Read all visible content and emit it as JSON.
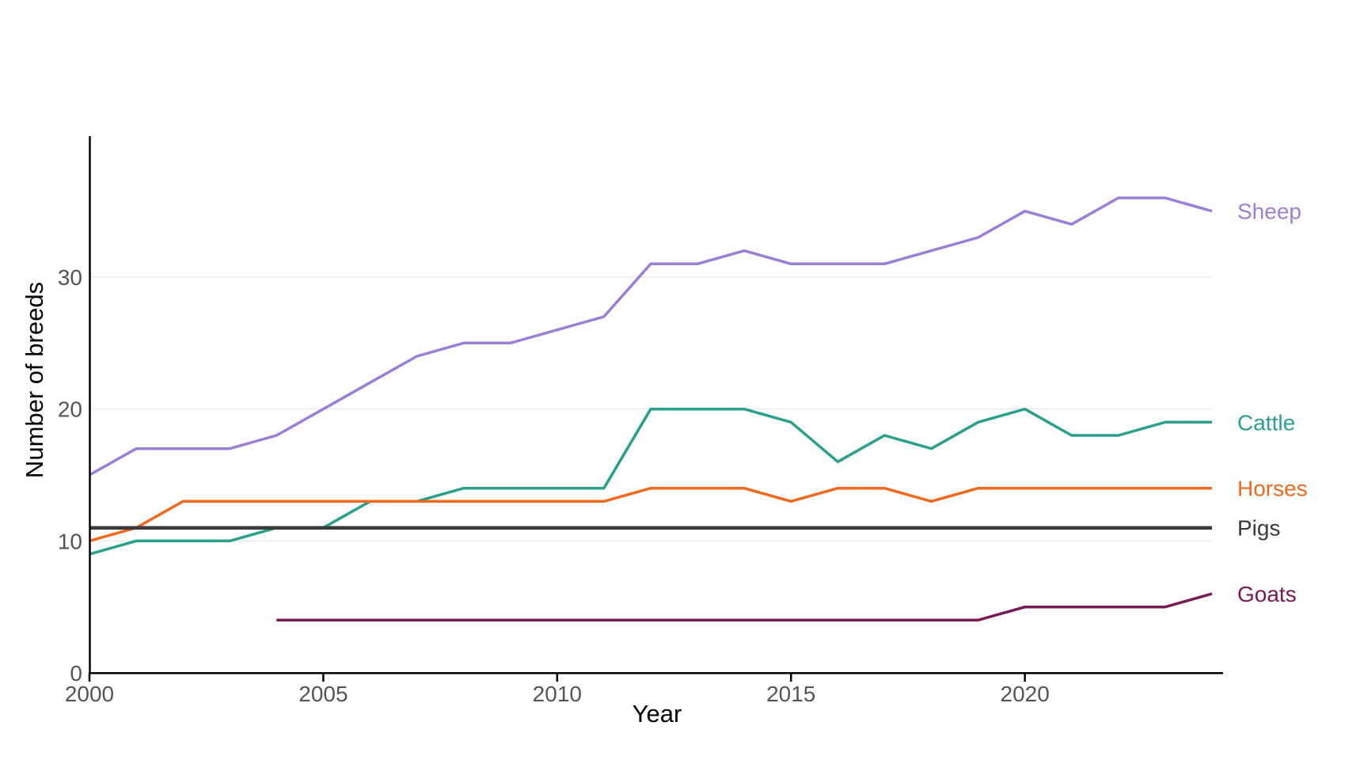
{
  "figure": {
    "background": "#ffffff",
    "gridline_color": "#ebebeb",
    "axis_line_color": "#000000",
    "tick_label_color": "#555555",
    "x_tick_labels": [
      "2000",
      "2005",
      "2010",
      "2015",
      "2020"
    ],
    "y_tick_labels": [
      "0",
      "10",
      "20",
      "30"
    ]
  },
  "chart_data": {
    "type": "line",
    "title": "",
    "xlabel": "Year",
    "ylabel": "Number of breeds",
    "x": [
      2000,
      2001,
      2002,
      2003,
      2004,
      2005,
      2006,
      2007,
      2008,
      2009,
      2010,
      2011,
      2012,
      2013,
      2014,
      2015,
      2016,
      2017,
      2018,
      2019,
      2020,
      2021,
      2022,
      2023,
      2024
    ],
    "x_ticks": [
      2000,
      2005,
      2010,
      2015,
      2020
    ],
    "y_ticks": [
      0,
      10,
      20,
      30
    ],
    "xlim": [
      2000,
      2024
    ],
    "ylim": [
      0,
      40.5
    ],
    "grid": "horizontal-major-only",
    "legend_position": "right-end-of-lines",
    "series": [
      {
        "name": "Sheep",
        "color": "#9b7fd4",
        "stroke_width": 3.5,
        "values": [
          15,
          17,
          17,
          17,
          18,
          20,
          22,
          24,
          25,
          25,
          26,
          27,
          31,
          31,
          32,
          31,
          31,
          31,
          32,
          33,
          35,
          34,
          36,
          36,
          35
        ]
      },
      {
        "name": "Cattle",
        "color": "#2aa08c",
        "stroke_width": 3.5,
        "values": [
          9,
          10,
          10,
          10,
          11,
          11,
          13,
          13,
          14,
          14,
          14,
          14,
          20,
          20,
          20,
          19,
          16,
          18,
          17,
          19,
          20,
          18,
          18,
          19,
          19
        ]
      },
      {
        "name": "Horses",
        "color": "#f1691d",
        "stroke_width": 3.5,
        "values": [
          10,
          11,
          13,
          13,
          13,
          13,
          13,
          13,
          13,
          13,
          13,
          13,
          14,
          14,
          14,
          13,
          14,
          14,
          13,
          14,
          14,
          14,
          14,
          14,
          14
        ]
      },
      {
        "name": "Pigs",
        "color": "#3b3b3b",
        "stroke_width": 4.5,
        "values": [
          11,
          11,
          11,
          11,
          11,
          11,
          11,
          11,
          11,
          11,
          11,
          11,
          11,
          11,
          11,
          11,
          11,
          11,
          11,
          11,
          11,
          11,
          11,
          11,
          11
        ]
      },
      {
        "name": "Goats",
        "color": "#7a1a54",
        "stroke_width": 3.5,
        "values": [
          null,
          null,
          null,
          null,
          4,
          4,
          4,
          4,
          4,
          4,
          4,
          4,
          4,
          4,
          4,
          4,
          4,
          4,
          4,
          4,
          5,
          5,
          5,
          5,
          6
        ]
      }
    ]
  }
}
